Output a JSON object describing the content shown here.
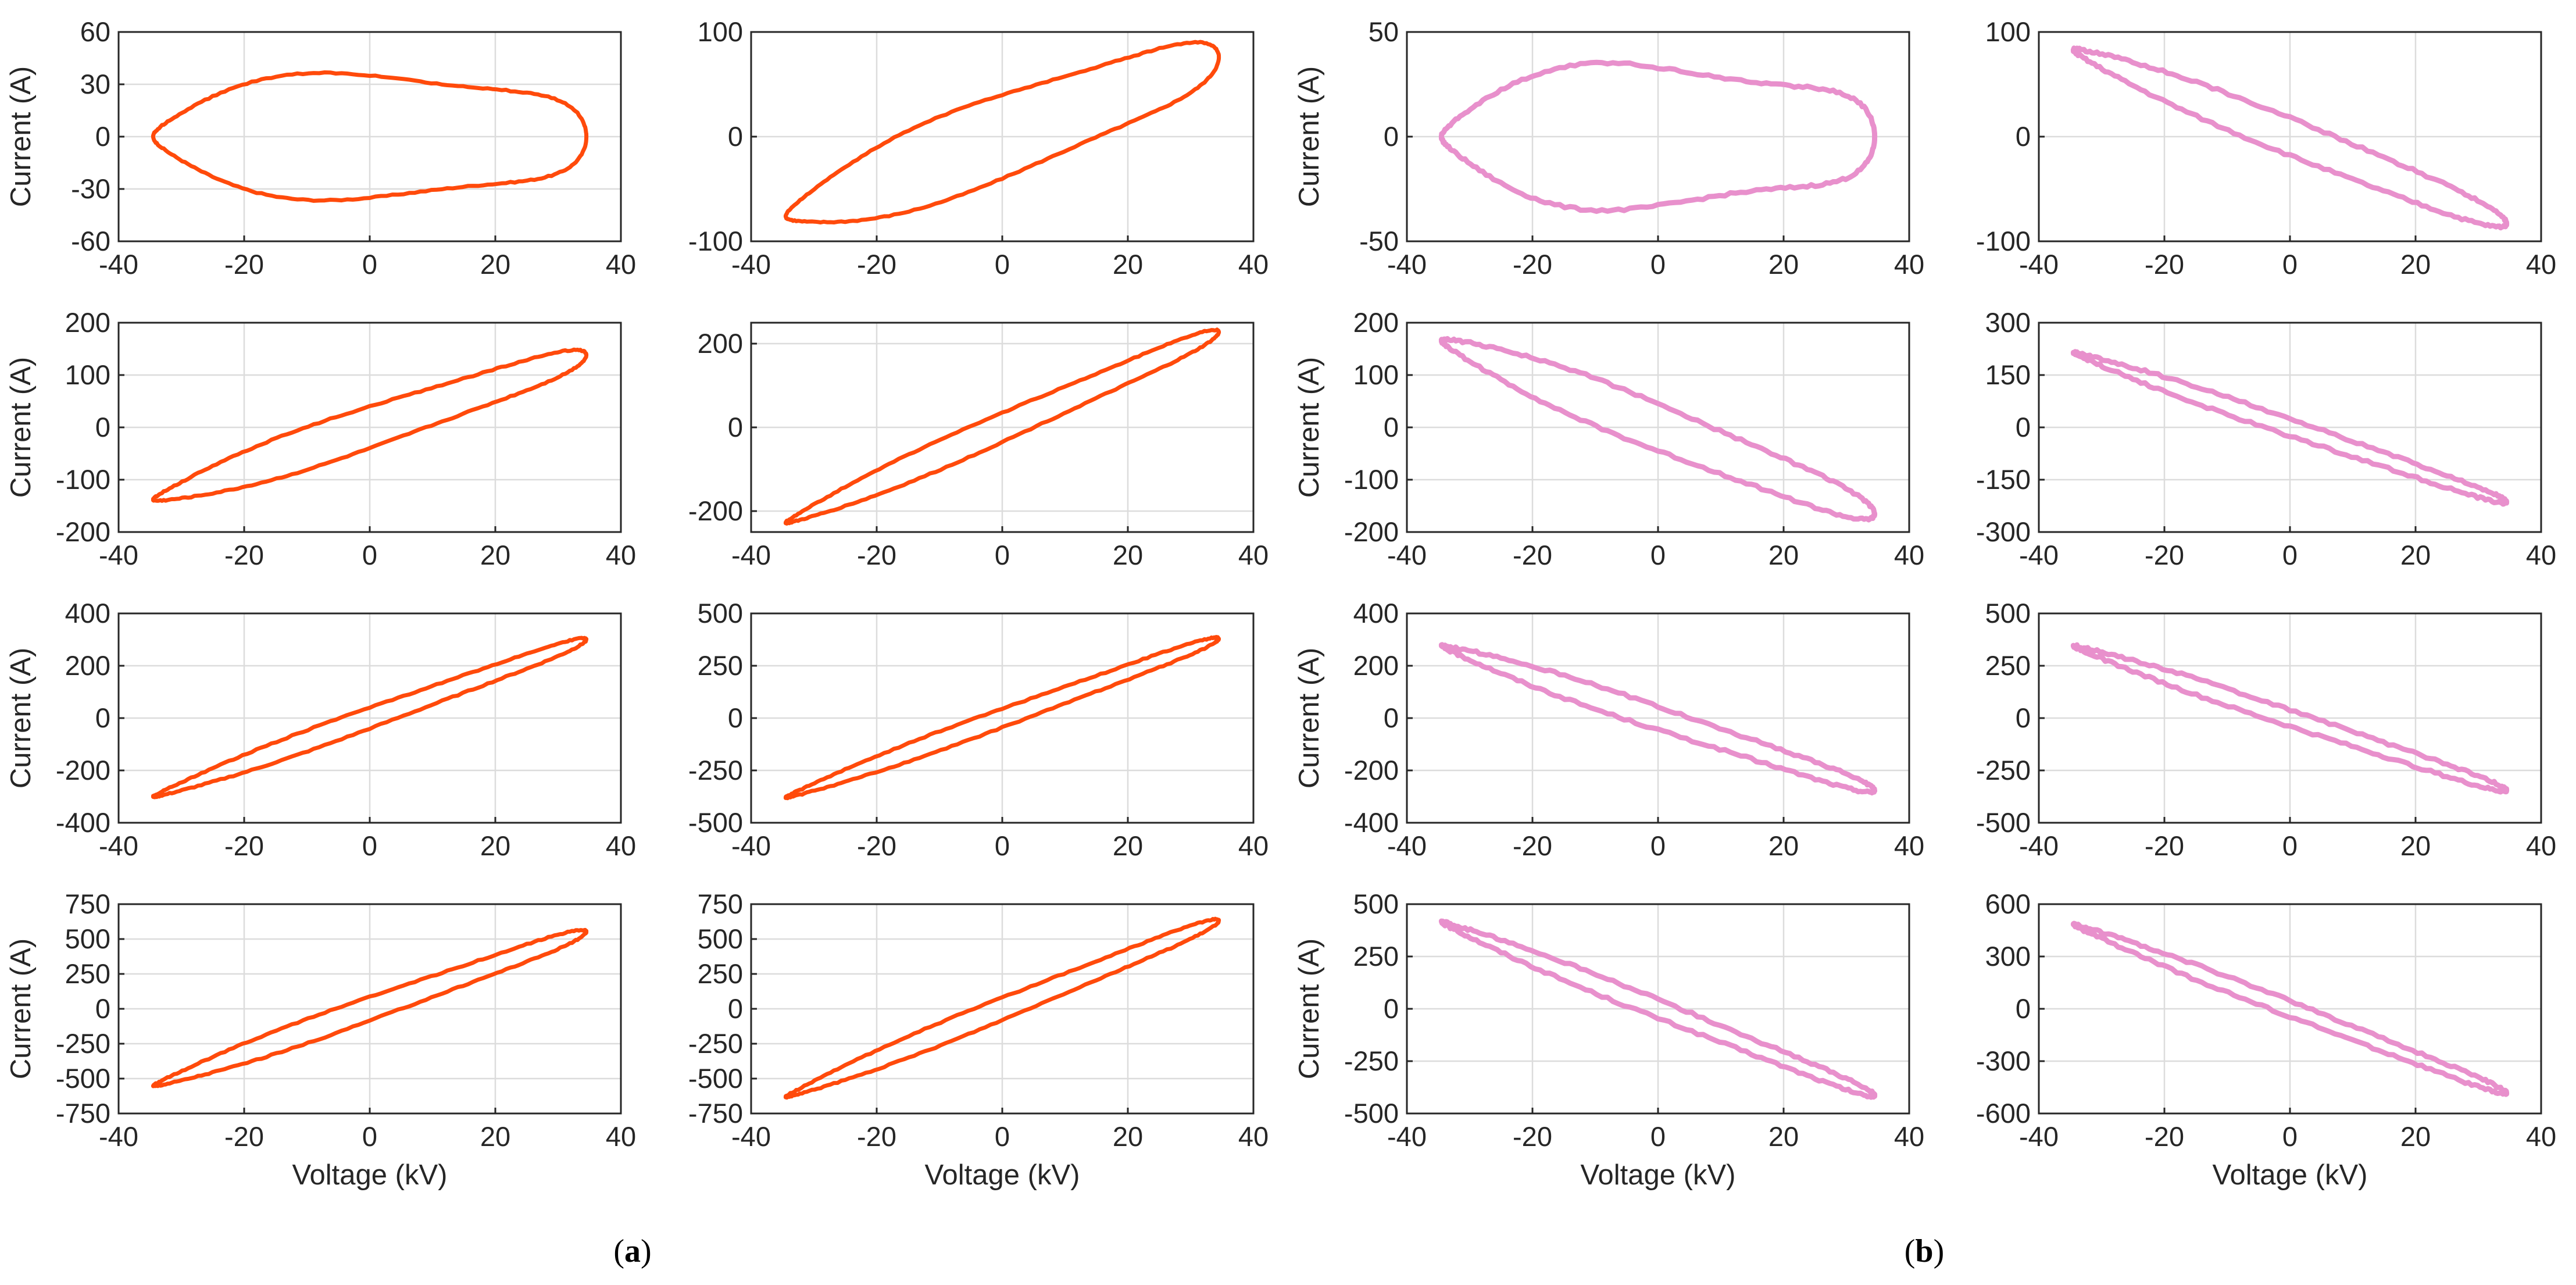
{
  "figure": {
    "panel_a_label": {
      "open": "(",
      "letter": "a",
      "close": ")"
    },
    "panel_b_label": {
      "open": "(",
      "letter": "b",
      "close": ")"
    },
    "colors": {
      "orange": "#FF4A0B",
      "pink": "#E890CC",
      "grid": "#DCDCDC",
      "axis": "#262626"
    }
  },
  "chart_data": [
    {
      "type": "line",
      "name": "a-r1-c1",
      "color": "orange",
      "xlabel": "",
      "ylabel": "Current (A)",
      "xlim": [
        -40,
        40
      ],
      "ylim": [
        -60,
        60
      ],
      "xticks": [
        -40,
        -20,
        0,
        20,
        40
      ],
      "yticks": [
        -60,
        -30,
        0,
        30,
        60
      ],
      "slope": 0.0,
      "width": 35,
      "shape": 1.1
    },
    {
      "type": "line",
      "name": "a-r1-c2",
      "color": "orange",
      "xlabel": "",
      "ylabel": "",
      "xlim": [
        -40,
        40
      ],
      "ylim": [
        -100,
        100
      ],
      "xticks": [
        -40,
        -20,
        0,
        20,
        40
      ],
      "yticks": [
        -100,
        0,
        100
      ],
      "slope": 2.2,
      "width": 40,
      "shape": 1.0
    },
    {
      "type": "line",
      "name": "b-r1-c1",
      "color": "pink",
      "xlabel": "",
      "ylabel": "Current (A)",
      "xlim": [
        -40,
        40
      ],
      "ylim": [
        -50,
        50
      ],
      "xticks": [
        -40,
        -20,
        0,
        20,
        40
      ],
      "yticks": [
        -50,
        0,
        50
      ],
      "slope": 0.0,
      "width": 33,
      "shape": 1.3
    },
    {
      "type": "line",
      "name": "b-r1-c2",
      "color": "pink",
      "xlabel": "",
      "ylabel": "",
      "xlim": [
        -40,
        40
      ],
      "ylim": [
        -100,
        100
      ],
      "xticks": [
        -40,
        -20,
        0,
        20,
        40
      ],
      "yticks": [
        -100,
        0,
        100
      ],
      "slope": -2.4,
      "width": 18,
      "shape": 0.6
    },
    {
      "type": "line",
      "name": "a-r2-c1",
      "color": "orange",
      "xlabel": "",
      "ylabel": "Current (A)",
      "xlim": [
        -40,
        40
      ],
      "ylim": [
        -200,
        200
      ],
      "xticks": [
        -40,
        -20,
        0,
        20,
        40
      ],
      "yticks": [
        -200,
        -100,
        0,
        100,
        200
      ],
      "slope": 4.0,
      "width": 40,
      "shape": 1.0
    },
    {
      "type": "line",
      "name": "a-r2-c2",
      "color": "orange",
      "xlabel": "",
      "ylabel": "",
      "xlim": [
        -40,
        40
      ],
      "ylim": [
        -250,
        250
      ],
      "xticks": [
        -40,
        -20,
        0,
        20,
        40
      ],
      "yticks": [
        -200,
        0,
        200
      ],
      "slope": 6.6,
      "width": 35,
      "shape": 1.0
    },
    {
      "type": "line",
      "name": "b-r2-c1",
      "color": "pink",
      "xlabel": "",
      "ylabel": "Current (A)",
      "xlim": [
        -40,
        40
      ],
      "ylim": [
        -200,
        200
      ],
      "xticks": [
        -40,
        -20,
        0,
        20,
        40
      ],
      "yticks": [
        -200,
        -100,
        0,
        100,
        200
      ],
      "slope": -4.8,
      "width": 45,
      "shape": 0.9
    },
    {
      "type": "line",
      "name": "b-r2-c2",
      "color": "pink",
      "xlabel": "",
      "ylabel": "",
      "xlim": [
        -40,
        40
      ],
      "ylim": [
        -300,
        300
      ],
      "xticks": [
        -40,
        -20,
        0,
        20,
        40
      ],
      "yticks": [
        -300,
        -150,
        0,
        150,
        300
      ],
      "slope": -6.2,
      "width": 25,
      "shape": 1.0
    },
    {
      "type": "line",
      "name": "a-r3-c1",
      "color": "orange",
      "xlabel": "",
      "ylabel": "Current (A)",
      "xlim": [
        -40,
        40
      ],
      "ylim": [
        -400,
        400
      ],
      "xticks": [
        -40,
        -20,
        0,
        20,
        40
      ],
      "yticks": [
        -400,
        -200,
        0,
        200,
        400
      ],
      "slope": 8.7,
      "width": 40,
      "shape": 1.0
    },
    {
      "type": "line",
      "name": "a-r3-c2",
      "color": "orange",
      "xlabel": "",
      "ylabel": "",
      "xlim": [
        -40,
        40
      ],
      "ylim": [
        -500,
        500
      ],
      "xticks": [
        -40,
        -20,
        0,
        20,
        40
      ],
      "yticks": [
        -500,
        -250,
        0,
        250,
        500
      ],
      "slope": 11.0,
      "width": 45,
      "shape": 1.0
    },
    {
      "type": "line",
      "name": "b-r3-c1",
      "color": "pink",
      "xlabel": "",
      "ylabel": "Current (A)",
      "xlim": [
        -40,
        40
      ],
      "ylim": [
        -400,
        400
      ],
      "xticks": [
        -40,
        -20,
        0,
        20,
        40
      ],
      "yticks": [
        -400,
        -200,
        0,
        200,
        400
      ],
      "slope": -8.0,
      "width": 45,
      "shape": 1.0
    },
    {
      "type": "line",
      "name": "b-r3-c2",
      "color": "pink",
      "xlabel": "",
      "ylabel": "",
      "xlim": [
        -40,
        40
      ],
      "ylim": [
        -500,
        500
      ],
      "xticks": [
        -40,
        -20,
        0,
        20,
        40
      ],
      "yticks": [
        -500,
        -250,
        0,
        250,
        500
      ],
      "slope": -10.0,
      "width": 40,
      "shape": 1.0
    },
    {
      "type": "line",
      "name": "a-r4-c1",
      "color": "orange",
      "xlabel": "Voltage (kV)",
      "ylabel": "Current (A)",
      "xlim": [
        -40,
        40
      ],
      "ylim": [
        -750,
        750
      ],
      "xticks": [
        -40,
        -20,
        0,
        20,
        40
      ],
      "yticks": [
        -750,
        -500,
        -250,
        0,
        250,
        500,
        750
      ],
      "slope": 16.0,
      "width": 85,
      "shape": 1.0
    },
    {
      "type": "line",
      "name": "a-r4-c2",
      "color": "orange",
      "xlabel": "Voltage (kV)",
      "ylabel": "",
      "xlim": [
        -40,
        40
      ],
      "ylim": [
        -750,
        750
      ],
      "xticks": [
        -40,
        -20,
        0,
        20,
        40
      ],
      "yticks": [
        -750,
        -500,
        -250,
        0,
        250,
        500,
        750
      ],
      "slope": 18.3,
      "width": 80,
      "shape": 1.0
    },
    {
      "type": "line",
      "name": "b-r4-c1",
      "color": "pink",
      "xlabel": "Voltage (kV)",
      "ylabel": "Current (A)",
      "xlim": [
        -40,
        40
      ],
      "ylim": [
        -500,
        500
      ],
      "xticks": [
        -40,
        -20,
        0,
        20,
        40
      ],
      "yticks": [
        -500,
        -250,
        0,
        250,
        500
      ],
      "slope": -12.0,
      "width": 45,
      "shape": 1.0
    },
    {
      "type": "line",
      "name": "b-r4-c2",
      "color": "pink",
      "xlabel": "Voltage (kV)",
      "ylabel": "",
      "xlim": [
        -40,
        40
      ],
      "ylim": [
        -600,
        600
      ],
      "xticks": [
        -40,
        -20,
        0,
        20,
        40
      ],
      "yticks": [
        -600,
        -300,
        0,
        300,
        600
      ],
      "slope": -14.0,
      "width": 45,
      "shape": 1.0
    }
  ]
}
